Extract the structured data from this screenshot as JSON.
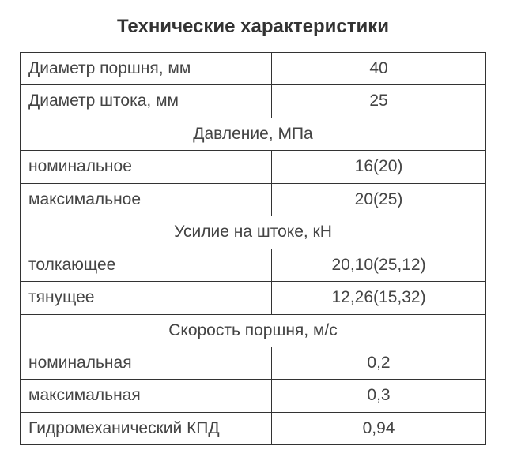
{
  "title": "Технические характеристики",
  "rows": [
    {
      "type": "kv",
      "label": "Диаметр поршня, мм",
      "value": "40"
    },
    {
      "type": "kv",
      "label": "Диаметр штока, мм",
      "value": "25"
    },
    {
      "type": "section",
      "label": "Давление, МПа"
    },
    {
      "type": "kv",
      "label": "номинальное",
      "value": "16(20)"
    },
    {
      "type": "kv",
      "label": "максимальное",
      "value": "20(25)"
    },
    {
      "type": "section",
      "label": "Усилие на штоке, кН"
    },
    {
      "type": "kv",
      "label": "толкающее",
      "value": "20,10(25,12)"
    },
    {
      "type": "kv",
      "label": "тянущее",
      "value": "12,26(15,32)"
    },
    {
      "type": "section",
      "label": "Скорость поршня, м/с"
    },
    {
      "type": "kv",
      "label": "номинальная",
      "value": "0,2"
    },
    {
      "type": "kv",
      "label": "максимальная",
      "value": "0,3"
    },
    {
      "type": "kv",
      "label": "Гидромеханический КПД",
      "value": "0,94"
    }
  ],
  "style": {
    "title_fontsize": 24,
    "title_fontweight": "bold",
    "cell_fontsize": 21,
    "border_color": "#333333",
    "text_color": "#444444",
    "background_color": "#ffffff",
    "label_col_width_pct": 54,
    "value_col_width_pct": 46
  }
}
